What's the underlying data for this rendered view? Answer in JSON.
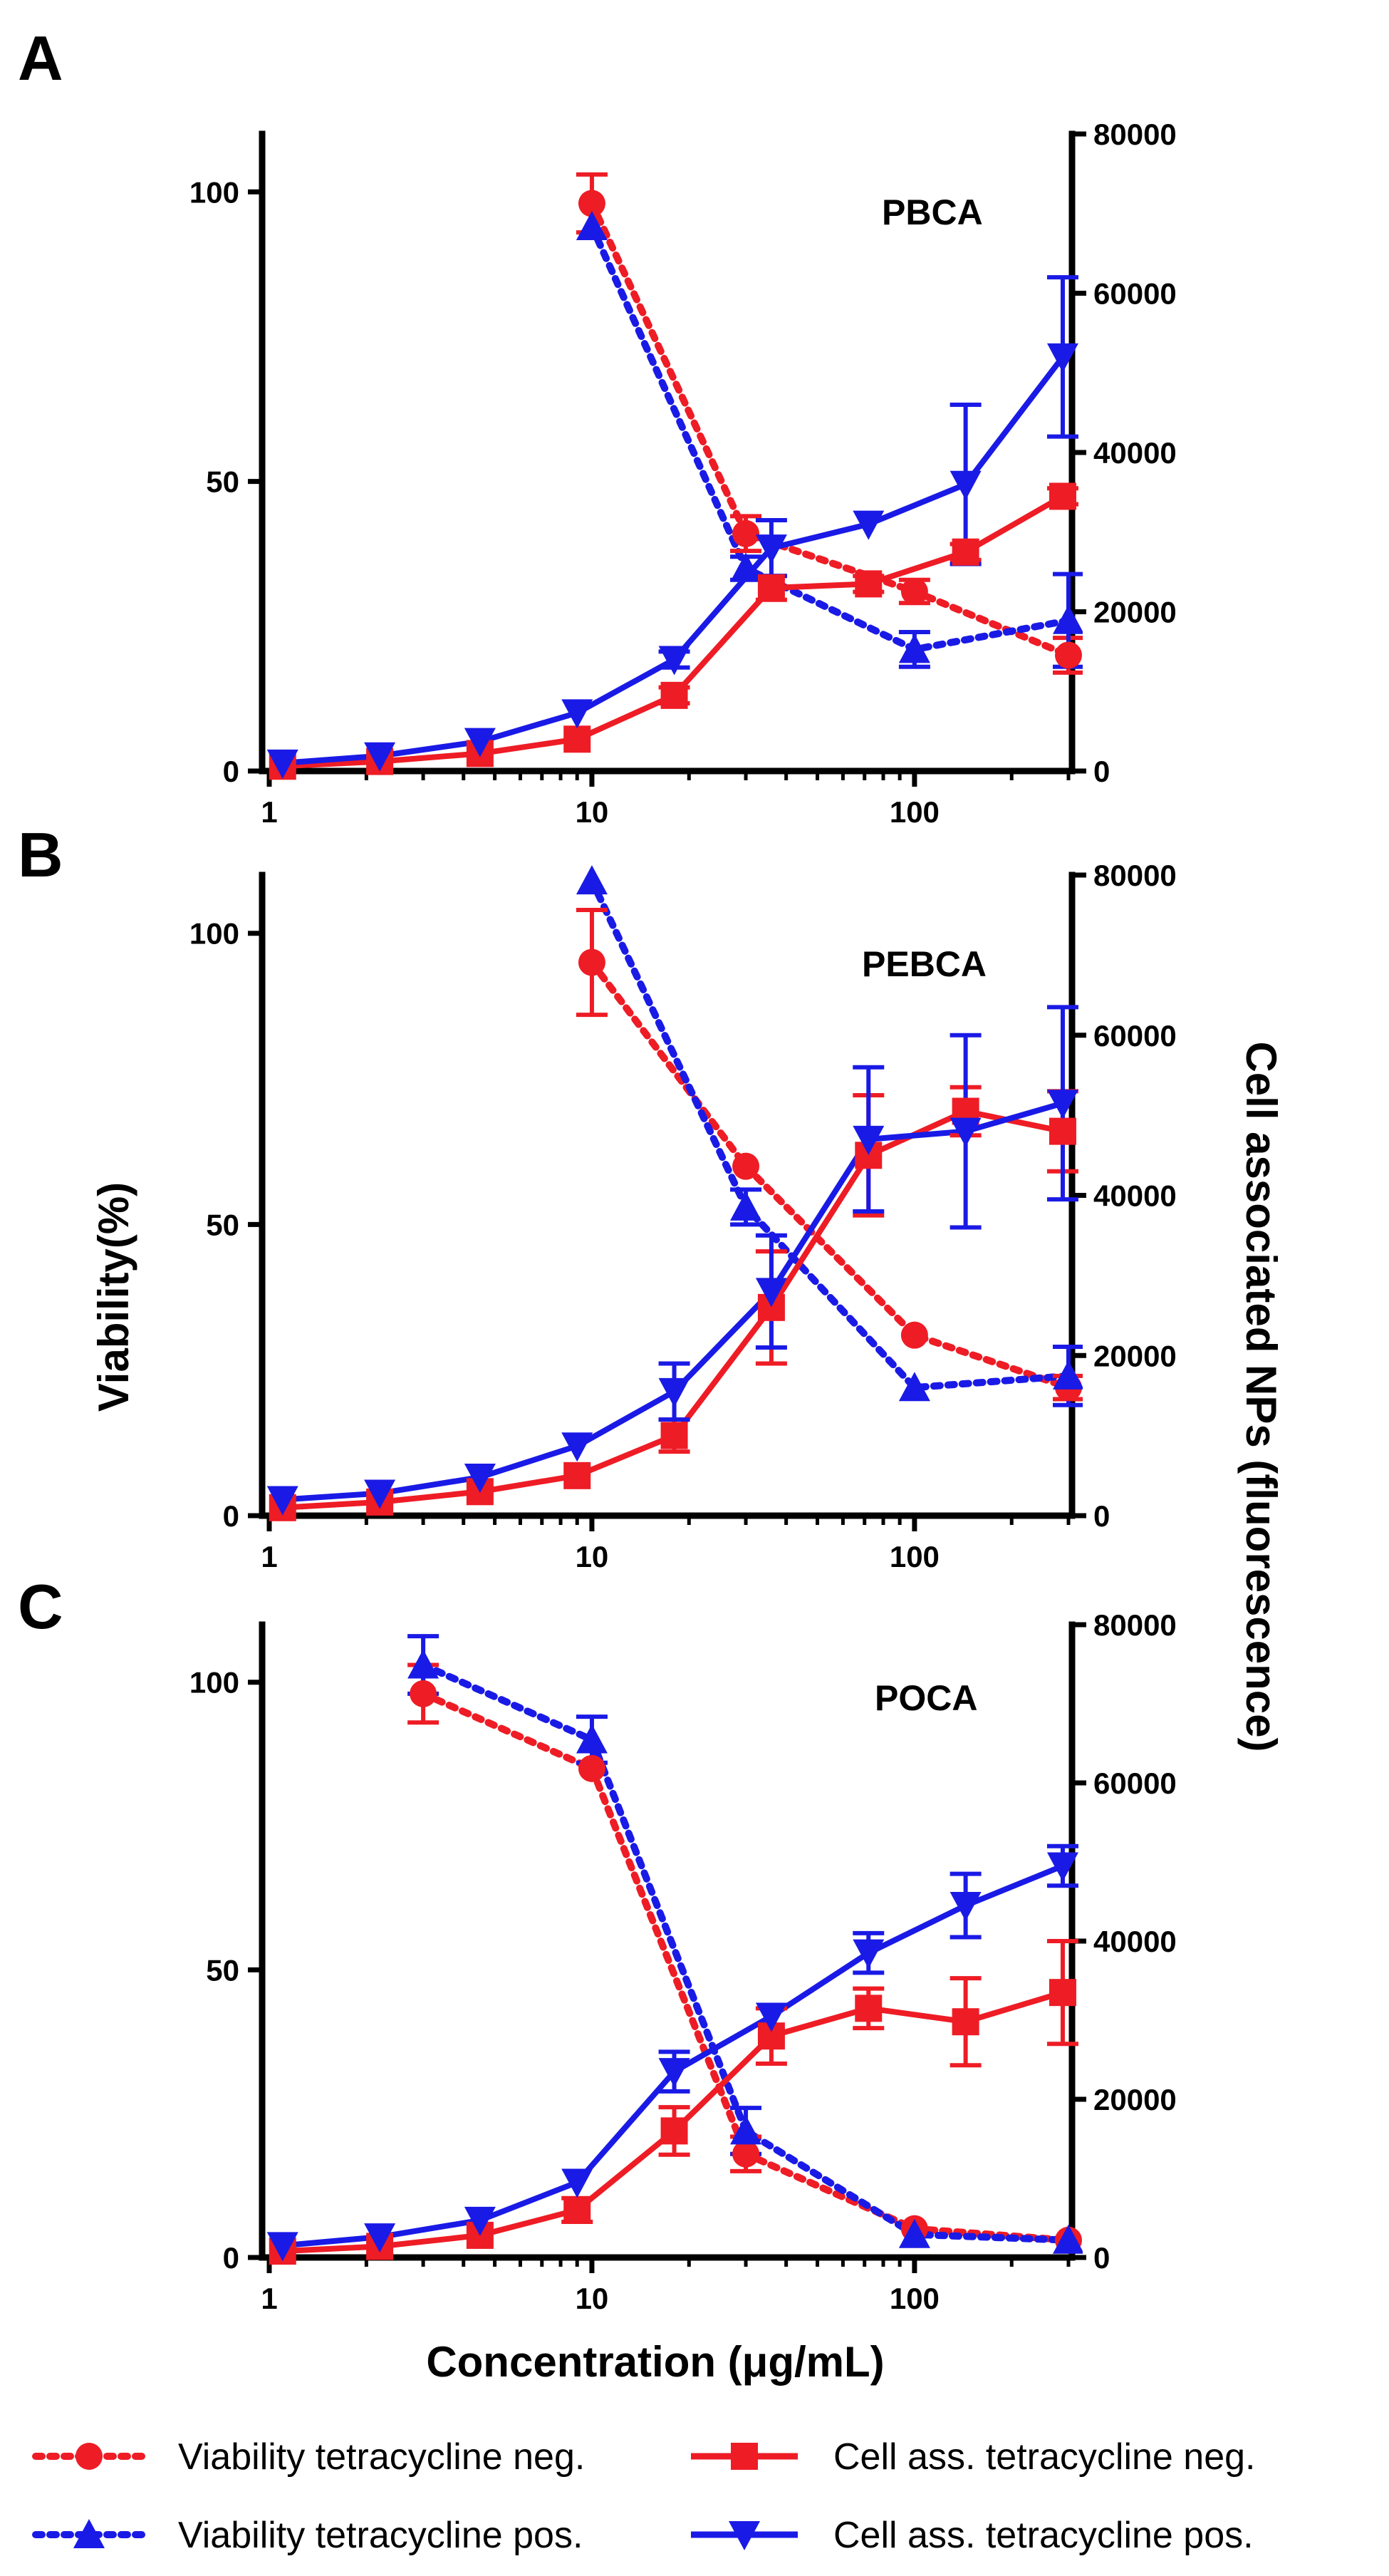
{
  "figure": {
    "y_left_title": "Viability(%)",
    "y_right_title": "Cell associated NPs (fluorescence)",
    "x_title": "Concentration (μg/mL)",
    "colors": {
      "red": "#ee1c25",
      "blue": "#1a1ae6"
    }
  },
  "legend": [
    {
      "label": "Viability tetracycline neg.",
      "color": "#ee1c25",
      "marker": "circle",
      "dashed": true
    },
    {
      "label": "Viability tetracycline pos.",
      "color": "#1a1ae6",
      "marker": "triangle-up",
      "dashed": true
    },
    {
      "label": "Cell ass. tetracycline neg.",
      "color": "#ee1c25",
      "marker": "square",
      "dashed": false
    },
    {
      "label": "Cell ass. tetracycline pos.",
      "color": "#1a1ae6",
      "marker": "triangle-down",
      "dashed": false
    }
  ],
  "chart_data": [
    {
      "type": "line",
      "panel": "A",
      "title": "PBCA",
      "xscale": "log",
      "xlim": [
        1,
        300
      ],
      "xticks": [
        "1",
        "10",
        "100"
      ],
      "ylim_left": [
        0,
        110
      ],
      "yticks_left": [
        "0",
        "50",
        "100"
      ],
      "ylim_right": [
        0,
        80000
      ],
      "yticks_right": [
        "0",
        "20000",
        "40000",
        "60000",
        "80000"
      ],
      "series": [
        {
          "name": "Viability tetracycline neg.",
          "axis": "left",
          "color": "#ee1c25",
          "marker": "circle",
          "dashed": true,
          "x": [
            10,
            30,
            100,
            300
          ],
          "y": [
            98,
            41,
            31,
            20
          ],
          "err": [
            5,
            3,
            2,
            3
          ]
        },
        {
          "name": "Viability tetracycline pos.",
          "axis": "left",
          "color": "#1a1ae6",
          "marker": "triangle-up",
          "dashed": true,
          "x": [
            10,
            30,
            100,
            300
          ],
          "y": [
            94,
            35,
            21,
            26
          ],
          "err": [
            0,
            2,
            3,
            8
          ]
        },
        {
          "name": "Cell ass. tetracycline neg.",
          "axis": "right",
          "color": "#ee1c25",
          "marker": "square",
          "dashed": false,
          "x": [
            1.1,
            2.2,
            4.5,
            9,
            18,
            36,
            72,
            144,
            288
          ],
          "y": [
            600,
            1200,
            2200,
            4000,
            9500,
            23000,
            23500,
            27500,
            34500
          ],
          "err": [
            0,
            0,
            0,
            0,
            1000,
            1500,
            1000,
            1000,
            1000
          ]
        },
        {
          "name": "Cell ass. tetracycline pos.",
          "axis": "right",
          "color": "#1a1ae6",
          "marker": "triangle-down",
          "dashed": false,
          "x": [
            1.1,
            2.2,
            4.5,
            9,
            18,
            36,
            72,
            144,
            288
          ],
          "y": [
            1000,
            1900,
            3700,
            7300,
            14000,
            28000,
            31000,
            36000,
            52000
          ],
          "err": [
            0,
            0,
            0,
            0,
            1000,
            3500,
            0,
            10000,
            10000
          ]
        }
      ]
    },
    {
      "type": "line",
      "panel": "B",
      "title": "PEBCA",
      "xscale": "log",
      "xlim": [
        1,
        300
      ],
      "xticks": [
        "1",
        "10",
        "100"
      ],
      "ylim_left": [
        0,
        110
      ],
      "yticks_left": [
        "0",
        "50",
        "100"
      ],
      "ylim_right": [
        0,
        80000
      ],
      "yticks_right": [
        "0",
        "20000",
        "40000",
        "60000",
        "80000"
      ],
      "series": [
        {
          "name": "Viability tetracycline neg.",
          "axis": "left",
          "color": "#ee1c25",
          "marker": "circle",
          "dashed": true,
          "x": [
            10,
            30,
            100,
            300
          ],
          "y": [
            95,
            60,
            31,
            22
          ],
          "err": [
            9,
            0,
            0,
            2
          ]
        },
        {
          "name": "Viability tetracycline pos.",
          "axis": "left",
          "color": "#1a1ae6",
          "marker": "triangle-up",
          "dashed": true,
          "x": [
            10,
            30,
            100,
            300
          ],
          "y": [
            109,
            53,
            22,
            24
          ],
          "err": [
            0,
            3,
            0,
            5
          ]
        },
        {
          "name": "Cell ass. tetracycline neg.",
          "axis": "right",
          "color": "#ee1c25",
          "marker": "square",
          "dashed": false,
          "x": [
            1.1,
            2.2,
            4.5,
            9,
            18,
            36,
            72,
            144,
            288
          ],
          "y": [
            1000,
            1700,
            3000,
            5000,
            10000,
            26000,
            45000,
            50500,
            48000
          ],
          "err": [
            0,
            0,
            0,
            0,
            2000,
            7000,
            7500,
            3000,
            5000
          ]
        },
        {
          "name": "Cell ass. tetracycline pos.",
          "axis": "right",
          "color": "#1a1ae6",
          "marker": "triangle-down",
          "dashed": false,
          "x": [
            1.1,
            2.2,
            4.5,
            9,
            18,
            36,
            72,
            144,
            288
          ],
          "y": [
            2000,
            2800,
            4800,
            8700,
            15500,
            28000,
            47000,
            48000,
            51500
          ],
          "err": [
            0,
            0,
            0,
            0,
            3500,
            7000,
            9000,
            12000,
            12000
          ]
        }
      ]
    },
    {
      "type": "line",
      "panel": "C",
      "title": "POCA",
      "xscale": "log",
      "xlim": [
        1,
        300
      ],
      "xticks": [
        "1",
        "10",
        "100"
      ],
      "ylim_left": [
        0,
        110
      ],
      "yticks_left": [
        "0",
        "50",
        "100"
      ],
      "ylim_right": [
        0,
        80000
      ],
      "yticks_right": [
        "0",
        "20000",
        "40000",
        "60000",
        "80000"
      ],
      "series": [
        {
          "name": "Viability tetracycline neg.",
          "axis": "left",
          "color": "#ee1c25",
          "marker": "circle",
          "dashed": true,
          "x": [
            3,
            10,
            30,
            100,
            300
          ],
          "y": [
            98,
            85,
            18,
            5,
            3
          ],
          "err": [
            5,
            0,
            3,
            0,
            0
          ]
        },
        {
          "name": "Viability tetracycline pos.",
          "axis": "left",
          "color": "#1a1ae6",
          "marker": "triangle-up",
          "dashed": true,
          "x": [
            3,
            10,
            30,
            100,
            300
          ],
          "y": [
            103,
            90,
            22,
            4,
            3
          ],
          "err": [
            5,
            4,
            4,
            0,
            0
          ]
        },
        {
          "name": "Cell ass. tetracycline neg.",
          "axis": "right",
          "color": "#ee1c25",
          "marker": "square",
          "dashed": false,
          "x": [
            1.1,
            2.2,
            4.5,
            9,
            18,
            36,
            72,
            144,
            288
          ],
          "y": [
            800,
            1400,
            2800,
            6000,
            16000,
            28000,
            31500,
            29800,
            33500
          ],
          "err": [
            0,
            0,
            0,
            1500,
            3000,
            3500,
            2500,
            5500,
            6500
          ]
        },
        {
          "name": "Cell ass. tetracycline pos.",
          "axis": "right",
          "color": "#1a1ae6",
          "marker": "triangle-down",
          "dashed": false,
          "x": [
            1.1,
            2.2,
            4.5,
            9,
            18,
            36,
            72,
            144,
            288
          ],
          "y": [
            1500,
            2600,
            4700,
            9500,
            23500,
            30500,
            38500,
            44500,
            49500
          ],
          "err": [
            0,
            0,
            0,
            0,
            2500,
            0,
            2500,
            4000,
            2500
          ]
        }
      ]
    }
  ]
}
